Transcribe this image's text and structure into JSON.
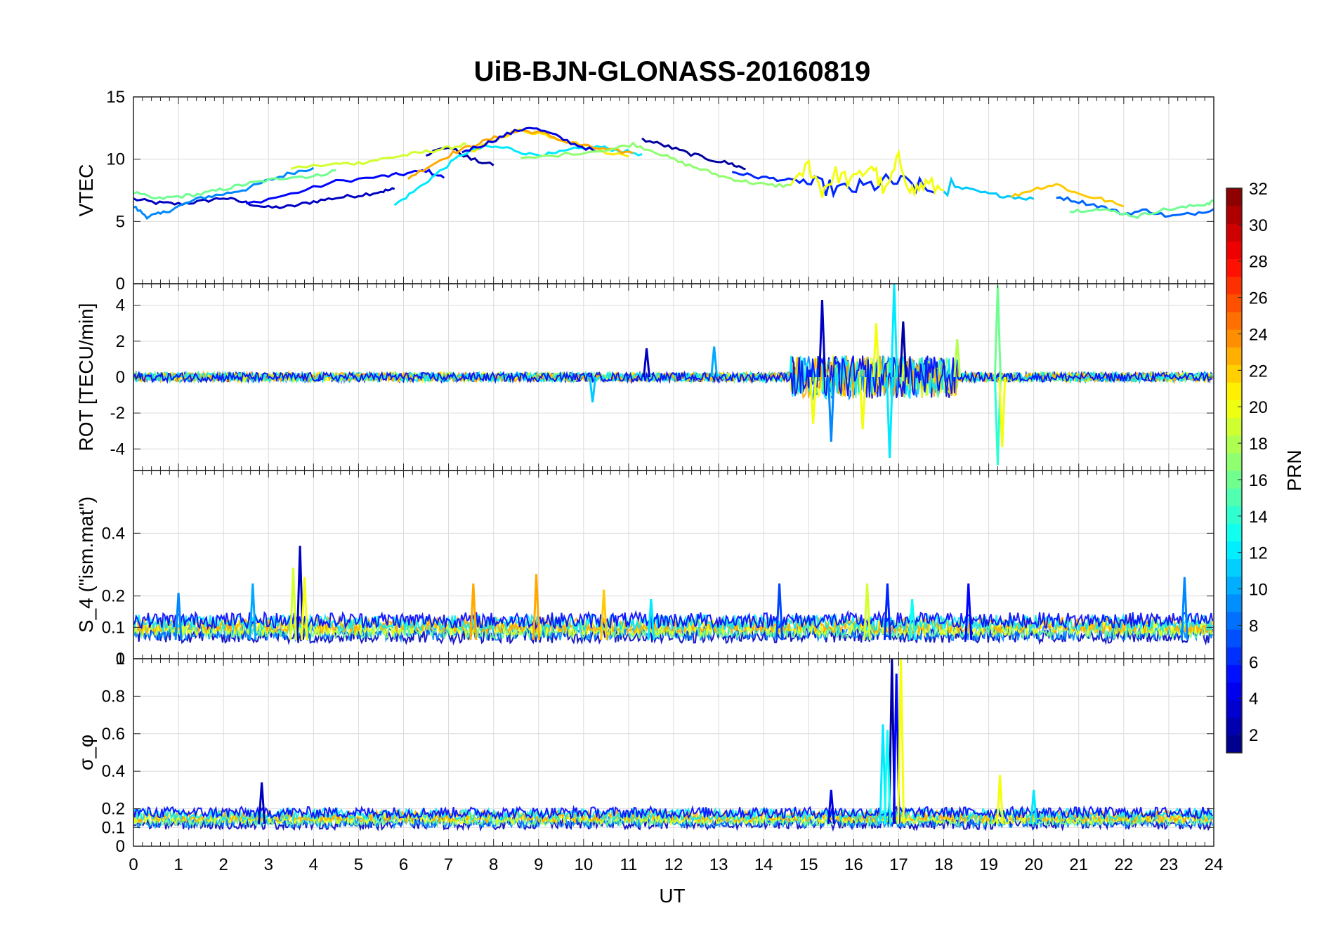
{
  "chart_data": {
    "type": "line",
    "title": "UiB-BJN-GLONASS-20160819",
    "xlabel": "UT",
    "xlim": [
      0,
      24
    ],
    "xticks": [
      "0",
      "1",
      "2",
      "3",
      "4",
      "5",
      "6",
      "7",
      "8",
      "9",
      "10",
      "11",
      "12",
      "13",
      "14",
      "15",
      "16",
      "17",
      "18",
      "19",
      "20",
      "21",
      "22",
      "23",
      "24"
    ],
    "colorbar": {
      "label": "PRN",
      "range": [
        1,
        32
      ],
      "ticks": [
        "2",
        "4",
        "6",
        "8",
        "10",
        "12",
        "14",
        "16",
        "18",
        "20",
        "22",
        "24",
        "26",
        "28",
        "30",
        "32"
      ],
      "colormap": "jet"
    },
    "panels": [
      {
        "id": "vtec",
        "ylabel": "VTEC",
        "ylim": [
          0,
          15
        ],
        "yticks": [
          "0",
          "5",
          "10",
          "15"
        ],
        "traces": [
          {
            "prn": 3,
            "x": [
              0.0,
              0.5,
              1.0,
              1.5,
              2.0,
              2.5,
              3.0,
              3.5,
              4.0,
              4.5,
              5.0,
              5.5,
              5.8
            ],
            "y": [
              6.8,
              6.5,
              6.4,
              6.6,
              6.9,
              6.5,
              6.1,
              6.2,
              6.6,
              6.9,
              7.1,
              7.4,
              7.6
            ]
          },
          {
            "prn": 5,
            "x": [
              2.5,
              3.5,
              4.5,
              5.5,
              6.0,
              6.5,
              6.9
            ],
            "y": [
              6.4,
              7.2,
              8.2,
              8.6,
              8.8,
              9.1,
              8.5
            ]
          },
          {
            "prn": 9,
            "x": [
              0.0,
              0.3,
              0.6,
              1.0,
              1.5,
              2.0,
              2.5,
              3.0,
              3.5,
              4.0
            ],
            "y": [
              6.2,
              5.4,
              5.6,
              6.2,
              6.9,
              7.2,
              7.6,
              8.3,
              8.9,
              9.3
            ]
          },
          {
            "prn": 2,
            "x": [
              6.5,
              7.0,
              7.5,
              8.0
            ],
            "y": [
              10.4,
              11.0,
              10.0,
              9.5
            ]
          },
          {
            "prn": 19,
            "x": [
              3.5,
              4.5,
              5.0,
              5.5,
              6.0,
              6.5,
              7.0,
              7.4
            ],
            "y": [
              9.3,
              9.6,
              9.7,
              10.0,
              10.3,
              10.6,
              10.9,
              11.2
            ]
          },
          {
            "prn": 16,
            "x": [
              0.0,
              0.5,
              1.0,
              1.5,
              2.0,
              2.5,
              3.0,
              3.5,
              4.0,
              4.5
            ],
            "y": [
              7.3,
              6.8,
              7.0,
              7.2,
              7.6,
              8.0,
              8.3,
              8.6,
              8.6,
              9.1
            ]
          },
          {
            "prn": 12,
            "x": [
              5.8,
              6.3,
              6.8,
              7.3,
              7.8,
              8.3,
              8.8,
              9.3,
              9.8,
              10.3,
              10.8,
              11.3
            ],
            "y": [
              6.3,
              7.6,
              9.0,
              10.4,
              11.0,
              10.9,
              10.4,
              10.4,
              10.8,
              11.0,
              10.7,
              10.4
            ]
          },
          {
            "prn": 21,
            "x": [
              7.5,
              8.0,
              8.5,
              9.0,
              9.5,
              10.0,
              10.5,
              11.0
            ],
            "y": [
              10.5,
              11.5,
              12.3,
              12.1,
              11.6,
              11.1,
              10.6,
              10.2
            ]
          },
          {
            "prn": 23,
            "x": [
              6.1,
              6.6,
              7.1,
              7.6,
              8.1,
              8.6,
              9.1,
              9.6,
              10.1,
              10.6,
              11.1
            ],
            "y": [
              8.5,
              9.5,
              10.5,
              11.2,
              11.8,
              12.3,
              12.1,
              11.4,
              11.0,
              10.7,
              10.5
            ]
          },
          {
            "prn": 4,
            "x": [
              7.3,
              7.8,
              8.3,
              8.8,
              9.3,
              9.8,
              10.3
            ],
            "y": [
              10.6,
              11.2,
              12.0,
              12.6,
              12.0,
              11.2,
              10.6
            ]
          },
          {
            "prn": 17,
            "x": [
              8.6,
              9.6,
              10.6,
              11.1,
              11.6,
              12.1,
              12.6,
              13.1,
              13.6,
              14.1,
              14.6
            ],
            "y": [
              10.0,
              10.4,
              10.8,
              11.2,
              10.6,
              9.8,
              9.2,
              8.6,
              8.2,
              7.9,
              7.9
            ]
          },
          {
            "prn": 2,
            "x": [
              11.3,
              11.8,
              12.3,
              12.8,
              13.3,
              13.6
            ],
            "y": [
              11.6,
              11.1,
              10.5,
              10.0,
              9.6,
              9.2
            ]
          },
          {
            "prn": 6,
            "x": [
              13.3,
              13.8,
              14.3,
              14.8,
              15.3,
              15.8,
              16.3,
              16.8,
              17.3,
              17.8
            ],
            "y": [
              9.0,
              8.6,
              8.4,
              8.2,
              7.8,
              7.5,
              7.8,
              8.2,
              8.0,
              7.3
            ]
          },
          {
            "prn": 20,
            "x": [
              14.6,
              15.0,
              15.3,
              15.6,
              16.0,
              16.4,
              16.7,
              17.0,
              17.3,
              17.6,
              18.0
            ],
            "y": [
              8.0,
              9.5,
              7.5,
              8.8,
              8.2,
              9.6,
              7.2,
              10.0,
              7.4,
              8.0,
              7.5
            ]
          },
          {
            "prn": 11,
            "x": [
              18.0,
              18.5,
              19.0,
              19.5,
              20.0
            ],
            "y": [
              7.8,
              7.6,
              7.2,
              7.0,
              6.8
            ]
          },
          {
            "prn": 22,
            "x": [
              19.5,
              20.0,
              20.5,
              21.0,
              21.5,
              22.0
            ],
            "y": [
              7.0,
              7.6,
              8.0,
              7.2,
              6.8,
              6.2
            ]
          },
          {
            "prn": 8,
            "x": [
              20.5,
              21.0,
              21.5,
              22.0,
              22.5,
              23.0,
              23.5,
              24.0
            ],
            "y": [
              7.0,
              6.6,
              6.2,
              5.6,
              5.9,
              5.4,
              5.6,
              6.0
            ]
          },
          {
            "prn": 16,
            "x": [
              20.8,
              21.3,
              21.8,
              22.3,
              22.8,
              23.3,
              23.8,
              24.0
            ],
            "y": [
              5.8,
              6.0,
              5.8,
              5.4,
              5.9,
              6.1,
              6.4,
              6.6
            ]
          }
        ]
      },
      {
        "id": "rot",
        "ylabel": "ROT [TECU/min]",
        "ylim": [
          -5.2,
          5.2
        ],
        "yticks": [
          "-4",
          "-2",
          "0",
          "2",
          "4"
        ],
        "peaks": [
          {
            "prn": 3,
            "x": 15.3,
            "y": 4.3
          },
          {
            "prn": 9,
            "x": 15.5,
            "y": -3.6
          },
          {
            "prn": 20,
            "x": 15.1,
            "y": -2.6
          },
          {
            "prn": 12,
            "x": 16.9,
            "y": 5.2
          },
          {
            "prn": 12,
            "x": 16.8,
            "y": -4.5
          },
          {
            "prn": 20,
            "x": 16.5,
            "y": 3.0
          },
          {
            "prn": 20,
            "x": 16.2,
            "y": -2.9
          },
          {
            "prn": 2,
            "x": 17.1,
            "y": 3.1
          },
          {
            "prn": 16,
            "x": 19.2,
            "y": 5.1
          },
          {
            "prn": 14,
            "x": 19.2,
            "y": -4.9
          },
          {
            "prn": 20,
            "x": 19.3,
            "y": -3.9
          },
          {
            "prn": 10,
            "x": 12.9,
            "y": 1.7
          },
          {
            "prn": 11,
            "x": 10.2,
            "y": -1.4
          },
          {
            "prn": 3,
            "x": 11.4,
            "y": 1.6
          },
          {
            "prn": 18,
            "x": 18.3,
            "y": 2.1
          }
        ]
      },
      {
        "id": "s4",
        "ylabel": "S_4 (\"ism.mat\")",
        "ylim": [
          0,
          0.6
        ],
        "yticks": [
          "0",
          "0.1",
          "0.2",
          "0.4"
        ],
        "peaks": [
          {
            "prn": 3,
            "x": 3.7,
            "y": 0.36
          },
          {
            "prn": 19,
            "x": 3.55,
            "y": 0.29
          },
          {
            "prn": 20,
            "x": 3.8,
            "y": 0.26
          },
          {
            "prn": 23,
            "x": 8.95,
            "y": 0.27
          },
          {
            "prn": 23,
            "x": 7.55,
            "y": 0.24
          },
          {
            "prn": 9,
            "x": 1.0,
            "y": 0.21
          },
          {
            "prn": 10,
            "x": 2.65,
            "y": 0.24
          },
          {
            "prn": 9,
            "x": 23.35,
            "y": 0.26
          },
          {
            "prn": 5,
            "x": 18.55,
            "y": 0.24
          },
          {
            "prn": 6,
            "x": 16.75,
            "y": 0.24
          },
          {
            "prn": 19,
            "x": 16.3,
            "y": 0.24
          },
          {
            "prn": 13,
            "x": 17.3,
            "y": 0.19
          },
          {
            "prn": 22,
            "x": 10.45,
            "y": 0.22
          },
          {
            "prn": 12,
            "x": 11.5,
            "y": 0.19
          },
          {
            "prn": 7,
            "x": 14.35,
            "y": 0.24
          }
        ]
      },
      {
        "id": "sigma_phi",
        "ylabel": "σ_φ",
        "ylim": [
          0,
          1.0
        ],
        "yticks": [
          "0",
          "0.1",
          "0.2",
          "0.4",
          "0.6",
          "0.8",
          "1"
        ],
        "peaks": [
          {
            "prn": 2,
            "x": 16.85,
            "y": 1.0
          },
          {
            "prn": 5,
            "x": 16.95,
            "y": 0.92
          },
          {
            "prn": 20,
            "x": 17.05,
            "y": 1.0
          },
          {
            "prn": 12,
            "x": 16.65,
            "y": 0.65
          },
          {
            "prn": 13,
            "x": 16.75,
            "y": 0.62
          },
          {
            "prn": 3,
            "x": 2.85,
            "y": 0.34
          },
          {
            "prn": 20,
            "x": 19.25,
            "y": 0.38
          },
          {
            "prn": 12,
            "x": 20.0,
            "y": 0.3
          },
          {
            "prn": 4,
            "x": 15.5,
            "y": 0.3
          }
        ]
      }
    ]
  }
}
